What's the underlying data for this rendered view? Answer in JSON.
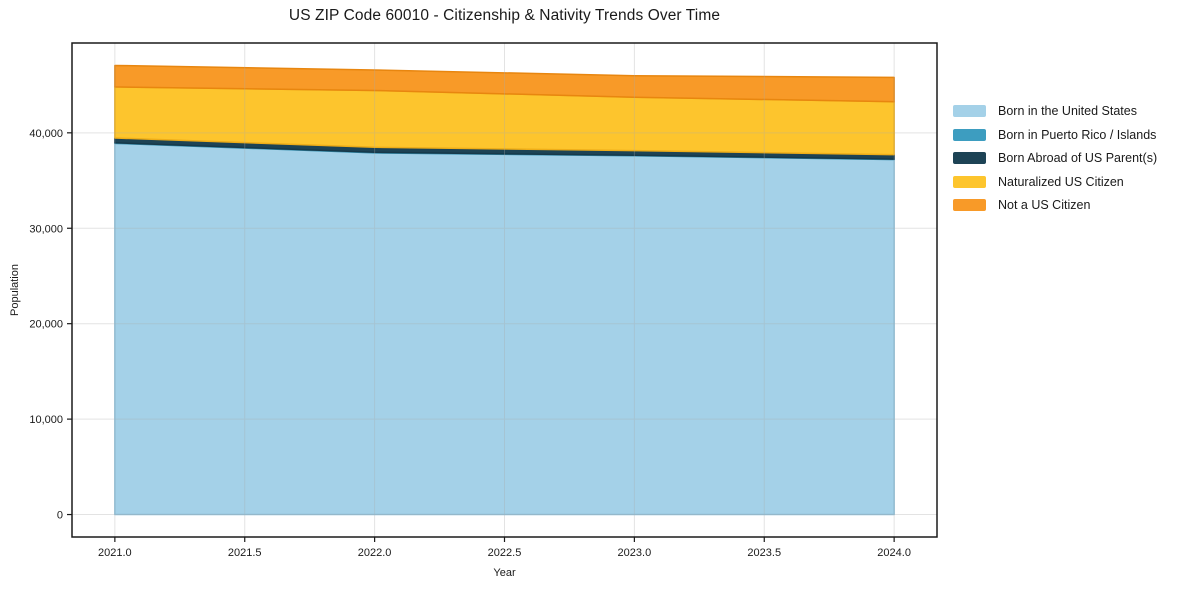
{
  "chart_data": {
    "type": "area",
    "stacked": true,
    "title": "US ZIP Code 60010 - Citizenship & Nativity Trends Over Time",
    "xlabel": "Year",
    "ylabel": "Population",
    "x": [
      2021,
      2022,
      2023,
      2024
    ],
    "series": [
      {
        "name": "Born in the United States",
        "color": "#a4d1e8",
        "edge": "#8cc0da",
        "values": [
          38900,
          37900,
          37600,
          37200
        ]
      },
      {
        "name": "Born in Puerto Rico / Islands",
        "color": "#3d9dc0",
        "edge": "#338dad",
        "values": [
          60,
          60,
          50,
          50
        ]
      },
      {
        "name": "Born Abroad of US Parent(s)",
        "color": "#1d4355",
        "edge": "#16394a",
        "values": [
          500,
          530,
          480,
          460
        ]
      },
      {
        "name": "Naturalized US Citizen",
        "color": "#fdc52d",
        "edge": "#eead18",
        "values": [
          5350,
          5950,
          5600,
          5550
        ]
      },
      {
        "name": "Not a US Citizen",
        "color": "#f89a28",
        "edge": "#e8860f",
        "values": [
          2250,
          2150,
          2250,
          2550
        ]
      }
    ],
    "totals": [
      47060,
      46590,
      45980,
      45810
    ],
    "xlim": [
      2020.835,
      2024.165
    ],
    "ylim": [
      -2353,
      49413
    ],
    "xticks": [
      2021.0,
      2021.5,
      2022.0,
      2022.5,
      2023.0,
      2023.5,
      2024.0
    ],
    "xtick_labels": [
      "2021.0",
      "2021.5",
      "2022.0",
      "2022.5",
      "2023.0",
      "2023.5",
      "2024.0"
    ],
    "yticks": [
      0,
      10000,
      20000,
      30000,
      40000
    ],
    "ytick_labels": [
      "0",
      "10,000",
      "20,000",
      "30,000",
      "40,000"
    ],
    "grid": true,
    "legend_position": "right-outside"
  }
}
